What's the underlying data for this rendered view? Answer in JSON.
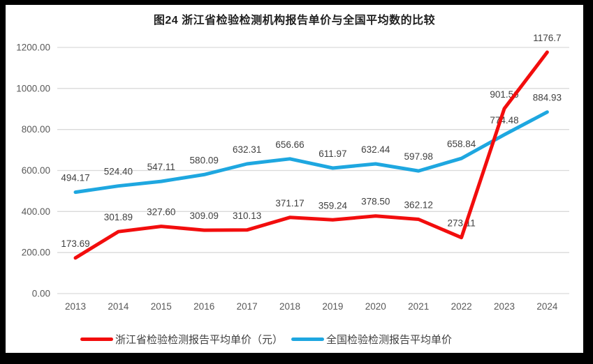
{
  "title": "图24  浙江省检验检测机构报告单价与全国平均数的比较",
  "chart_data": {
    "type": "line",
    "title": "图24  浙江省检验检测机构报告单价与全国平均数的比较",
    "categories": [
      "2013",
      "2014",
      "2015",
      "2016",
      "2017",
      "2018",
      "2019",
      "2020",
      "2021",
      "2022",
      "2023",
      "2024"
    ],
    "series": [
      {
        "name": "浙江省检验检测报告平均单价（元）",
        "color": "#f20d0d",
        "values": [
          173.69,
          301.89,
          327.6,
          309.09,
          310.13,
          371.17,
          359.24,
          378.5,
          362.12,
          273.11,
          901.56,
          1176.7
        ],
        "labels": [
          "173.69",
          "301.89",
          "327.60",
          "309.09",
          "310.13",
          "371.17",
          "359.24",
          "378.50",
          "362.12",
          "273.11",
          "901.56",
          "1176.7"
        ]
      },
      {
        "name": "全国检验检测报告平均单价",
        "color": "#1ea7e0",
        "values": [
          494.17,
          524.4,
          547.11,
          580.09,
          632.31,
          656.66,
          611.97,
          632.44,
          597.98,
          658.84,
          774.48,
          884.93
        ],
        "labels": [
          "494.17",
          "524.40",
          "547.11",
          "580.09",
          "632.31",
          "656.66",
          "611.97",
          "632.44",
          "597.98",
          "658.84",
          "774.48",
          "884.93"
        ]
      }
    ],
    "xlabel": "",
    "ylabel": "",
    "ylim": [
      0,
      1200
    ],
    "ytick_step": 200,
    "ytick_labels": [
      "0.00",
      "200.00",
      "400.00",
      "600.00",
      "800.00",
      "1000.00",
      "1200.00"
    ],
    "grid": true,
    "legend_position": "bottom",
    "data_labels_shown": true
  },
  "colors": {
    "frame": "#000000",
    "background": "#ffffff",
    "gridline": "#d9d9d9",
    "axis_text": "#595959",
    "data_label_text": "#404040",
    "title_text": "#1f1f1f"
  }
}
